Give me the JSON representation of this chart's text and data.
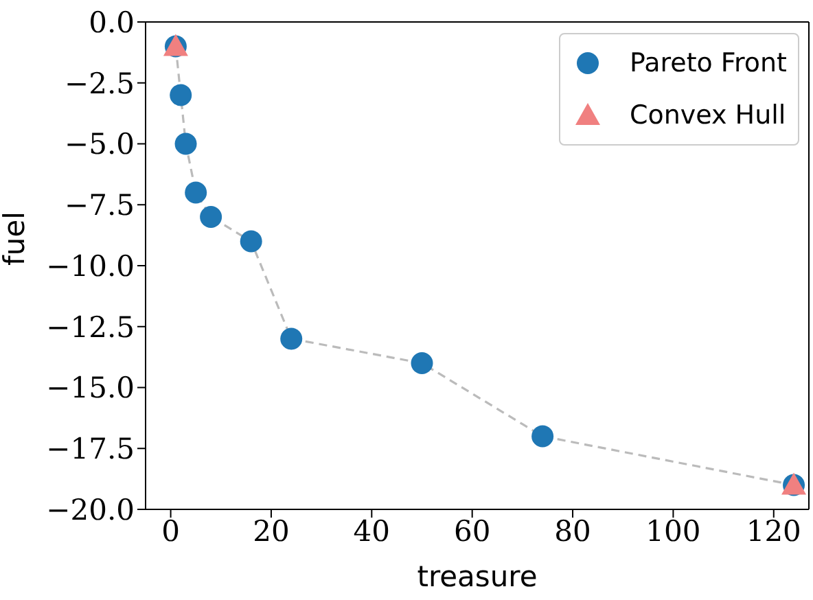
{
  "chart_data": {
    "type": "scatter",
    "xlabel": "treasure",
    "ylabel": "fuel",
    "xlim": [
      -5,
      127
    ],
    "ylim": [
      -20,
      0
    ],
    "xticks": [
      0,
      20,
      40,
      60,
      80,
      100,
      120
    ],
    "yticks": [
      {
        "value": 0,
        "label": "0.0"
      },
      {
        "value": -2.5,
        "label": "−2.5"
      },
      {
        "value": -5,
        "label": "−5.0"
      },
      {
        "value": -7.5,
        "label": "−7.5"
      },
      {
        "value": -10,
        "label": "−10.0"
      },
      {
        "value": -12.5,
        "label": "−12.5"
      },
      {
        "value": -15,
        "label": "−15.0"
      },
      {
        "value": -17.5,
        "label": "−17.5"
      },
      {
        "value": -20,
        "label": "−20.0"
      }
    ],
    "grid": false,
    "legend": "top right",
    "series": [
      {
        "type": "line",
        "color": "#bbbbbb",
        "line_style": "dashed",
        "marker": "none",
        "x": [
          1,
          2,
          3,
          5,
          8,
          16,
          24,
          50,
          74,
          124
        ],
        "values": [
          -1,
          -3,
          -5,
          -7,
          -8,
          -9,
          -13,
          -14,
          -17,
          -19
        ]
      },
      {
        "name": "Pareto Front",
        "color": "#1f77b4",
        "marker": "circle",
        "x": [
          1,
          2,
          3,
          5,
          8,
          16,
          24,
          50,
          74,
          124
        ],
        "values": [
          -1,
          -3,
          -5,
          -7,
          -8,
          -9,
          -13,
          -14,
          -17,
          -19
        ]
      },
      {
        "name": "Convex Hull",
        "color": "#f08080",
        "marker": "triangle",
        "x": [
          1,
          124
        ],
        "values": [
          -1,
          -19
        ]
      }
    ]
  }
}
